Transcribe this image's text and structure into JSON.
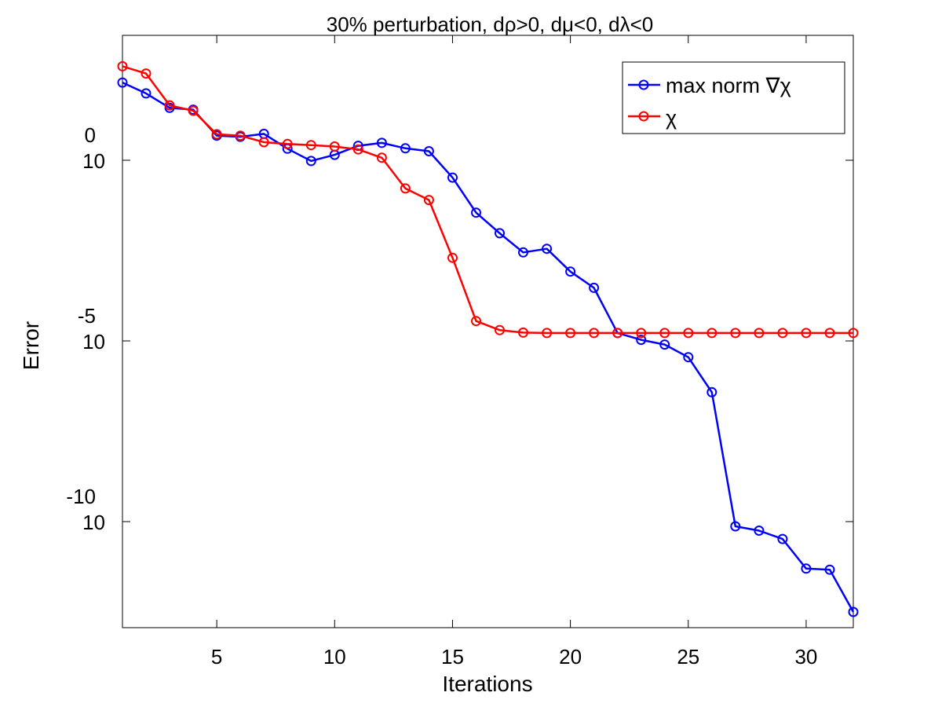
{
  "chart_data": {
    "type": "line",
    "title": "30% perturbation, dρ>0, dμ<0, dλ<0",
    "xlabel": "Iterations",
    "ylabel": "Error",
    "xlim": [
      1,
      32
    ],
    "ylim_log10": [
      -13.5,
      2.3
    ],
    "y_scale": "log",
    "grid": false,
    "legend_position": "top-right",
    "x_ticks": [
      5,
      10,
      15,
      20,
      25,
      30
    ],
    "y_ticks": [
      {
        "value": 0,
        "base": "10",
        "exponent": "0"
      },
      {
        "value": -5,
        "base": "10",
        "exponent": "-5"
      },
      {
        "value": -10,
        "base": "10",
        "exponent": "-10"
      }
    ],
    "x": [
      1,
      2,
      3,
      4,
      5,
      6,
      7,
      8,
      9,
      10,
      11,
      12,
      13,
      14,
      15,
      16,
      17,
      18,
      19,
      20,
      21,
      22,
      23,
      24,
      25,
      26,
      27,
      28,
      29,
      30,
      31,
      32
    ],
    "series": [
      {
        "name": "max norm ∇χ",
        "color": "#0000ff",
        "log10_values": [
          2.15,
          1.85,
          1.45,
          1.4,
          0.68,
          0.65,
          0.73,
          0.32,
          -0.02,
          0.15,
          0.4,
          0.48,
          0.33,
          0.25,
          -0.48,
          -1.45,
          -2.02,
          -2.55,
          -2.45,
          -3.08,
          -3.53,
          -4.78,
          -4.97,
          -5.1,
          -5.45,
          -6.42,
          -10.13,
          -10.25,
          -10.48,
          -11.3,
          -11.33,
          -12.5
        ]
      },
      {
        "name": "χ",
        "color": "#ff0000",
        "log10_values": [
          2.6,
          2.4,
          1.52,
          1.37,
          0.72,
          0.68,
          0.5,
          0.45,
          0.42,
          0.38,
          0.3,
          0.07,
          -0.78,
          -1.1,
          -2.7,
          -4.45,
          -4.7,
          -4.77,
          -4.78,
          -4.78,
          -4.78,
          -4.78,
          -4.78,
          -4.78,
          -4.78,
          -4.78,
          -4.78,
          -4.78,
          -4.78,
          -4.78,
          -4.78,
          -4.78
        ]
      }
    ]
  }
}
